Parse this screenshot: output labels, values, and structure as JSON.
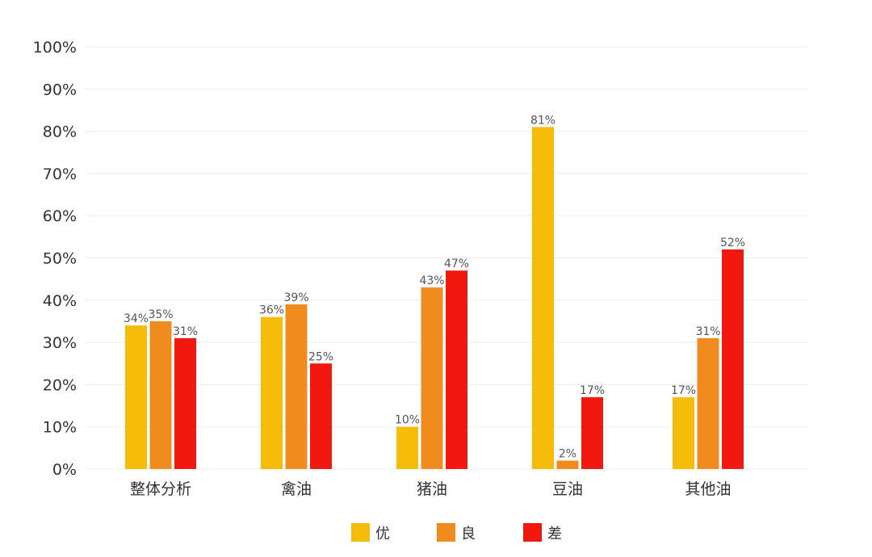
{
  "chart_data": {
    "type": "bar",
    "categories": [
      "整体分析",
      "禽油",
      "猪油",
      "豆油",
      "其他油"
    ],
    "series": [
      {
        "name": "优",
        "color": "#F5BC0A",
        "values": [
          34,
          36,
          10,
          81,
          17
        ]
      },
      {
        "name": "良",
        "color": "#F08C1E",
        "values": [
          35,
          39,
          43,
          2,
          31
        ]
      },
      {
        "name": "差",
        "color": "#F0180F",
        "values": [
          31,
          25,
          47,
          17,
          52
        ]
      }
    ],
    "data_labels": [
      [
        "34%",
        "36%",
        "10%",
        "81%",
        "17%"
      ],
      [
        "35%",
        "39%",
        "43%",
        "2%",
        "31%"
      ],
      [
        "31%",
        "25%",
        "47%",
        "17%",
        "52%"
      ]
    ],
    "yticks": [
      "0%",
      "10%",
      "20%",
      "30%",
      "40%",
      "50%",
      "60%",
      "70%",
      "80%",
      "90%",
      "100%"
    ],
    "ylim": [
      0,
      100
    ],
    "grid": true,
    "legend_position": "bottom"
  }
}
